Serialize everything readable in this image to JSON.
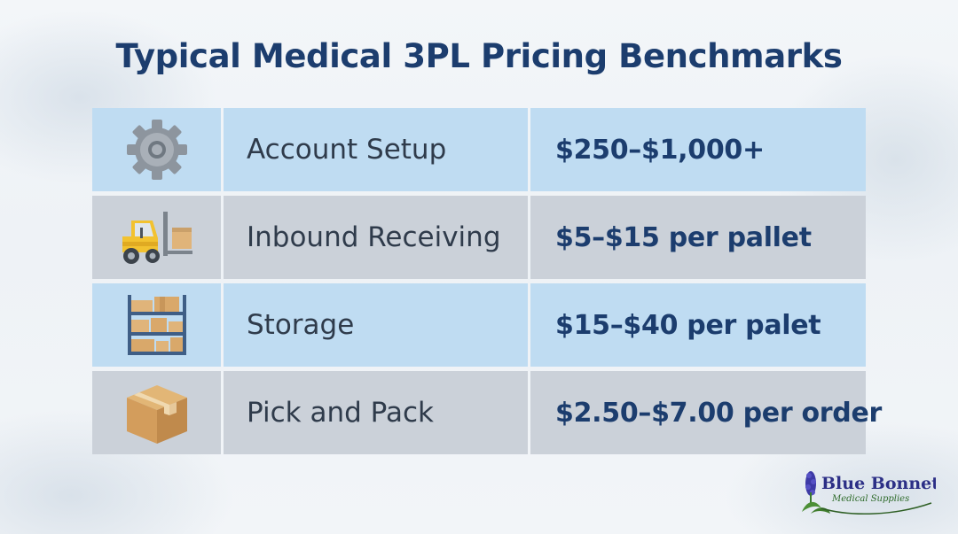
{
  "title": "Typical Medical 3PL Pricing Benchmarks",
  "rows": [
    {
      "icon": "gear-icon",
      "label": "Account Setup",
      "price": "$250–$1,000+"
    },
    {
      "icon": "forklift-icon",
      "label": "Inbound Receiving",
      "price": "$5–$15 per pallet"
    },
    {
      "icon": "shelves-icon",
      "label": "Storage",
      "price": "$15–$40 per palet"
    },
    {
      "icon": "box-icon",
      "label": "Pick and Pack",
      "price": "$2.50–$7.00 per order"
    }
  ],
  "logo": {
    "line1": "Blue Bonnet",
    "line2": "Medical Supplies"
  },
  "colors": {
    "title": "#1c3d6e",
    "row_blue": "#bfdcf2",
    "row_gray": "#cbd1d9",
    "label_text": "#2f3b4b"
  }
}
